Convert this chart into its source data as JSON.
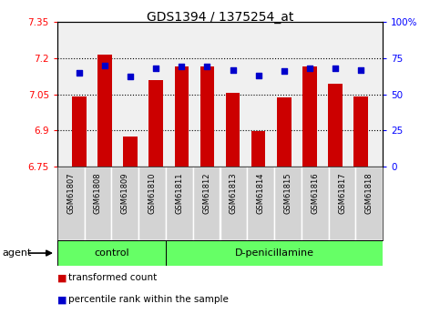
{
  "title": "GDS1394 / 1375254_at",
  "samples": [
    "GSM61807",
    "GSM61808",
    "GSM61809",
    "GSM61810",
    "GSM61811",
    "GSM61812",
    "GSM61813",
    "GSM61814",
    "GSM61815",
    "GSM61816",
    "GSM61817",
    "GSM61818"
  ],
  "bar_values": [
    7.04,
    7.215,
    6.875,
    7.11,
    7.165,
    7.165,
    7.055,
    6.895,
    7.035,
    7.165,
    7.095,
    7.04
  ],
  "percentile_values": [
    65,
    70,
    62,
    68,
    69,
    69,
    67,
    63,
    66,
    68,
    68,
    67
  ],
  "ylim_left": [
    6.75,
    7.35
  ],
  "ylim_right": [
    0,
    100
  ],
  "yticks_left": [
    6.75,
    6.9,
    7.05,
    7.2,
    7.35
  ],
  "ytick_labels_left": [
    "6.75",
    "6.9",
    "7.05",
    "7.2",
    "7.35"
  ],
  "yticks_right": [
    0,
    25,
    50,
    75,
    100
  ],
  "ytick_labels_right": [
    "0",
    "25",
    "50",
    "75",
    "100%"
  ],
  "hlines": [
    7.2,
    7.05,
    6.9
  ],
  "bar_color": "#cc0000",
  "dot_color": "#0000cc",
  "background_plot": "#f0f0f0",
  "control_samples": 4,
  "control_label": "control",
  "treatment_label": "D-penicillamine",
  "agent_label": "agent",
  "legend_bar_label": "transformed count",
  "legend_dot_label": "percentile rank within the sample",
  "group_box_color": "#66ff66",
  "tick_label_bg": "#d3d3d3",
  "plot_bg": "#ffffff"
}
